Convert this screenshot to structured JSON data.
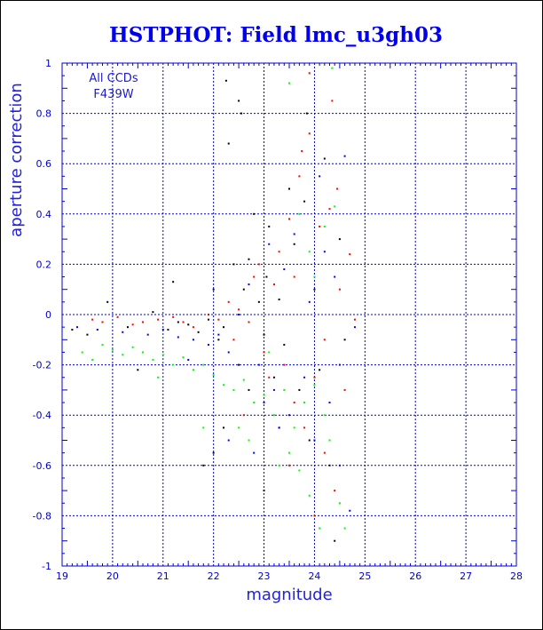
{
  "chart_data": {
    "type": "scatter",
    "title": "HSTPHOT: Field lmc_u3gh03",
    "xlabel": "magnitude",
    "ylabel": "aperture correction",
    "xlim": [
      19,
      28
    ],
    "ylim": [
      -1,
      1
    ],
    "x_ticks": [
      19,
      20,
      21,
      22,
      23,
      24,
      25,
      26,
      27,
      28
    ],
    "y_ticks": [
      -1,
      -0.8,
      -0.6,
      -0.4,
      -0.2,
      0,
      0.2,
      0.4,
      0.6,
      0.8,
      1
    ],
    "grid": true,
    "annotation": [
      "All CCDs",
      "F439W"
    ],
    "colors": {
      "axis": "#0000cc",
      "grid": "#0000cc",
      "text": "#0000cc",
      "title": "#0000ee"
    },
    "series": [
      {
        "color": "#000000",
        "points": [
          [
            19.2,
            -0.06
          ],
          [
            19.5,
            -0.08
          ],
          [
            19.9,
            0.05
          ],
          [
            20.3,
            -0.05
          ],
          [
            20.8,
            0.01
          ],
          [
            21.1,
            -0.06
          ],
          [
            21.3,
            -0.03
          ],
          [
            21.5,
            -0.04
          ],
          [
            21.7,
            -0.07
          ],
          [
            21.9,
            -0.02
          ],
          [
            22.0,
            0.1
          ],
          [
            22.1,
            -0.1
          ],
          [
            22.2,
            -0.05
          ],
          [
            22.25,
            0.93
          ],
          [
            22.3,
            0.68
          ],
          [
            22.4,
            0.2
          ],
          [
            22.5,
            0.85
          ],
          [
            22.55,
            0.8
          ],
          [
            22.5,
            -0.2
          ],
          [
            22.6,
            0.1
          ],
          [
            22.7,
            0.22
          ],
          [
            22.8,
            0.4
          ],
          [
            22.9,
            0.05
          ],
          [
            23.0,
            -0.08
          ],
          [
            23.05,
            0.15
          ],
          [
            23.1,
            0.35
          ],
          [
            23.2,
            -0.25
          ],
          [
            23.3,
            0.06
          ],
          [
            23.4,
            -0.12
          ],
          [
            23.5,
            0.5
          ],
          [
            23.6,
            0.28
          ],
          [
            23.7,
            -0.3
          ],
          [
            23.8,
            0.45
          ],
          [
            23.85,
            0.8
          ],
          [
            23.9,
            -0.5
          ],
          [
            24.0,
            0.1
          ],
          [
            24.1,
            -0.22
          ],
          [
            24.2,
            0.62
          ],
          [
            24.3,
            -0.6
          ],
          [
            24.4,
            -0.9
          ],
          [
            22.0,
            -0.55
          ],
          [
            22.2,
            -0.45
          ],
          [
            21.8,
            -0.6
          ],
          [
            23.0,
            -0.7
          ],
          [
            23.3,
            -0.45
          ],
          [
            22.7,
            -0.3
          ],
          [
            24.5,
            0.3
          ],
          [
            24.6,
            -0.1
          ],
          [
            20.5,
            -0.22
          ],
          [
            21.2,
            0.13
          ]
        ]
      },
      {
        "color": "#ff0000",
        "points": [
          [
            19.6,
            -0.02
          ],
          [
            19.8,
            -0.03
          ],
          [
            20.1,
            -0.01
          ],
          [
            20.4,
            -0.04
          ],
          [
            20.6,
            -0.03
          ],
          [
            20.9,
            -0.02
          ],
          [
            21.2,
            -0.01
          ],
          [
            21.4,
            -0.03
          ],
          [
            21.6,
            -0.05
          ],
          [
            21.9,
            0.0
          ],
          [
            22.1,
            -0.02
          ],
          [
            22.3,
            0.05
          ],
          [
            22.5,
            0.02
          ],
          [
            22.7,
            -0.03
          ],
          [
            22.8,
            0.15
          ],
          [
            22.9,
            0.2
          ],
          [
            23.0,
            -0.15
          ],
          [
            23.2,
            0.12
          ],
          [
            23.3,
            0.25
          ],
          [
            23.4,
            -0.2
          ],
          [
            23.5,
            0.38
          ],
          [
            23.6,
            -0.35
          ],
          [
            23.7,
            0.55
          ],
          [
            23.75,
            0.65
          ],
          [
            23.8,
            -0.45
          ],
          [
            23.9,
            0.72
          ],
          [
            24.0,
            -0.25
          ],
          [
            24.1,
            0.35
          ],
          [
            24.2,
            -0.55
          ],
          [
            24.3,
            0.42
          ],
          [
            24.35,
            0.85
          ],
          [
            24.4,
            -0.7
          ],
          [
            24.5,
            0.1
          ],
          [
            24.6,
            -0.3
          ],
          [
            24.7,
            0.24
          ],
          [
            24.8,
            -0.02
          ],
          [
            23.9,
            0.96
          ],
          [
            24.45,
            0.5
          ],
          [
            22.4,
            -0.1
          ],
          [
            23.1,
            -0.25
          ],
          [
            23.6,
            0.15
          ],
          [
            24.2,
            -0.1
          ],
          [
            24.0,
            -0.8
          ],
          [
            23.5,
            -0.6
          ],
          [
            22.6,
            -0.4
          ]
        ]
      },
      {
        "color": "#0000ff",
        "points": [
          [
            19.3,
            -0.05
          ],
          [
            19.7,
            -0.06
          ],
          [
            20.2,
            -0.07
          ],
          [
            20.7,
            -0.08
          ],
          [
            21.0,
            -0.06
          ],
          [
            21.3,
            -0.09
          ],
          [
            21.6,
            -0.1
          ],
          [
            21.9,
            -0.12
          ],
          [
            22.1,
            -0.08
          ],
          [
            22.3,
            -0.15
          ],
          [
            22.5,
            0.0
          ],
          [
            22.7,
            0.12
          ],
          [
            22.9,
            -0.2
          ],
          [
            23.1,
            0.28
          ],
          [
            23.2,
            -0.3
          ],
          [
            23.4,
            0.18
          ],
          [
            23.5,
            -0.4
          ],
          [
            23.6,
            0.32
          ],
          [
            23.8,
            -0.25
          ],
          [
            23.9,
            0.05
          ],
          [
            24.0,
            -0.5
          ],
          [
            24.2,
            0.25
          ],
          [
            24.3,
            -0.35
          ],
          [
            24.4,
            0.15
          ],
          [
            24.5,
            -0.2
          ],
          [
            24.6,
            0.63
          ],
          [
            24.7,
            -0.78
          ],
          [
            24.8,
            -0.05
          ],
          [
            22.3,
            -0.5
          ],
          [
            22.8,
            -0.55
          ],
          [
            23.0,
            -0.35
          ],
          [
            23.3,
            -0.45
          ],
          [
            24.1,
            0.55
          ],
          [
            24.5,
            -0.6
          ],
          [
            21.5,
            -0.18
          ]
        ]
      },
      {
        "color": "#00ff00",
        "points": [
          [
            19.4,
            -0.15
          ],
          [
            19.6,
            -0.18
          ],
          [
            19.8,
            -0.12
          ],
          [
            20.0,
            -0.14
          ],
          [
            20.2,
            -0.16
          ],
          [
            20.4,
            -0.13
          ],
          [
            20.6,
            -0.15
          ],
          [
            20.8,
            -0.18
          ],
          [
            21.0,
            -0.16
          ],
          [
            21.2,
            -0.2
          ],
          [
            21.4,
            -0.17
          ],
          [
            21.6,
            -0.22
          ],
          [
            21.8,
            -0.2
          ],
          [
            22.0,
            -0.24
          ],
          [
            22.2,
            -0.28
          ],
          [
            22.4,
            -0.3
          ],
          [
            22.6,
            -0.26
          ],
          [
            22.8,
            -0.35
          ],
          [
            23.0,
            -0.32
          ],
          [
            23.2,
            -0.4
          ],
          [
            23.4,
            -0.3
          ],
          [
            23.5,
            -0.55
          ],
          [
            23.6,
            -0.45
          ],
          [
            23.7,
            -0.62
          ],
          [
            23.8,
            -0.35
          ],
          [
            23.9,
            -0.72
          ],
          [
            24.0,
            -0.28
          ],
          [
            24.1,
            -0.85
          ],
          [
            24.2,
            -0.4
          ],
          [
            24.3,
            -0.5
          ],
          [
            24.4,
            0.43
          ],
          [
            24.5,
            -0.75
          ],
          [
            24.2,
            0.35
          ],
          [
            23.9,
            0.25
          ],
          [
            23.5,
            0.92
          ],
          [
            24.35,
            0.98
          ],
          [
            24.6,
            -0.85
          ],
          [
            22.7,
            -0.5
          ],
          [
            23.3,
            -0.6
          ],
          [
            23.1,
            -0.15
          ],
          [
            24.0,
            0.15
          ],
          [
            23.7,
            0.4
          ],
          [
            22.5,
            -0.45
          ],
          [
            21.8,
            -0.45
          ],
          [
            20.9,
            -0.25
          ]
        ]
      }
    ]
  }
}
